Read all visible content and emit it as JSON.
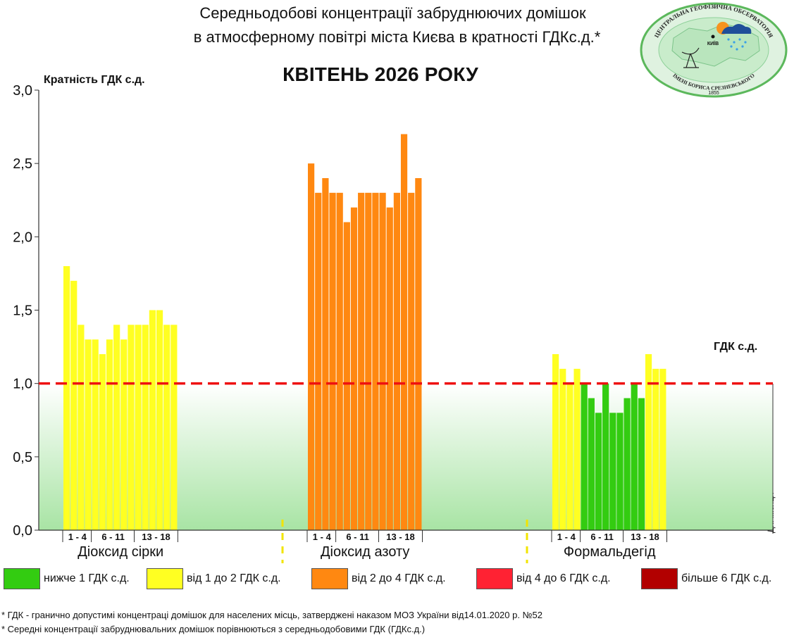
{
  "title_line1": "Середньодобові концентрації забруднюючих домішок",
  "title_line2": "в атмосферному повітрі міста Києва в кратності ГДКс.д.*",
  "month_title": "КВІТЕНЬ 2026 РОКУ",
  "y_axis_label": "Кратність ГДК с.д.",
  "gdk_line_label": "ГДК с.д.",
  "days_axis_label": "Дні місяця",
  "logo": {
    "ring_text_top": "ЦЕНТРАЛЬНА ГЕОФІЗИЧНА ОБСЕРВАТОРІЯ",
    "ring_text_bottom": "ІМЕНІ БОРИСА СРЕЗНЕВСЬКОГО",
    "city": "КИЇВ",
    "year": "1855"
  },
  "colors": {
    "green": "#33cc11",
    "yellow": "#ffff22",
    "orange": "#ff8811",
    "red": "#ff2233",
    "darkred": "#b20000",
    "threshold": "#ee1111"
  },
  "chart_data": {
    "type": "bar",
    "ylim": [
      0,
      3.0
    ],
    "yticks": [
      "0,0",
      "0,5",
      "1,0",
      "1,5",
      "2,0",
      "2,5",
      "3,0"
    ],
    "threshold": 1.0,
    "threshold_label": "ГДК с.д.",
    "groups": [
      {
        "name": "Діоксид сірки",
        "days": [
          1,
          2,
          3,
          4,
          6,
          7,
          8,
          9,
          10,
          11,
          13,
          14,
          15,
          16,
          17,
          18
        ],
        "values": [
          1.8,
          1.7,
          1.4,
          1.3,
          1.3,
          1.2,
          1.3,
          1.4,
          1.3,
          1.4,
          1.4,
          1.4,
          1.5,
          1.5,
          1.4,
          1.4
        ],
        "colors": [
          "yellow",
          "yellow",
          "yellow",
          "yellow",
          "yellow",
          "yellow",
          "yellow",
          "yellow",
          "yellow",
          "yellow",
          "yellow",
          "yellow",
          "yellow",
          "yellow",
          "yellow",
          "yellow"
        ],
        "day_ranges": [
          "1 - 4",
          "6 - 11",
          "13 - 18"
        ]
      },
      {
        "name": "Діоксид азоту",
        "days": [
          1,
          2,
          3,
          4,
          6,
          7,
          8,
          9,
          10,
          11,
          13,
          14,
          15,
          16,
          17,
          18
        ],
        "values": [
          2.5,
          2.3,
          2.4,
          2.3,
          2.3,
          2.1,
          2.2,
          2.3,
          2.3,
          2.3,
          2.3,
          2.2,
          2.3,
          2.7,
          2.3,
          2.4
        ],
        "colors": [
          "orange",
          "orange",
          "orange",
          "orange",
          "orange",
          "orange",
          "orange",
          "orange",
          "orange",
          "orange",
          "orange",
          "orange",
          "orange",
          "orange",
          "orange",
          "orange"
        ],
        "day_ranges": [
          "1 - 4",
          "6 - 11",
          "13 - 18"
        ]
      },
      {
        "name": "Формальдегід",
        "days": [
          1,
          2,
          3,
          4,
          6,
          7,
          8,
          9,
          10,
          11,
          13,
          14,
          15,
          16,
          17,
          18
        ],
        "values": [
          1.2,
          1.1,
          1.0,
          1.1,
          1.0,
          0.9,
          0.8,
          1.0,
          0.8,
          0.8,
          0.9,
          1.0,
          0.9,
          1.2,
          1.1,
          1.1
        ],
        "colors": [
          "yellow",
          "yellow",
          "yellow",
          "yellow",
          "green",
          "green",
          "green",
          "green",
          "green",
          "green",
          "green",
          "green",
          "green",
          "yellow",
          "yellow",
          "yellow"
        ],
        "day_ranges": [
          "1 - 4",
          "6 - 11",
          "13 - 18"
        ]
      }
    ]
  },
  "legend": [
    {
      "label": "нижче 1 ГДК с.д.",
      "color": "green"
    },
    {
      "label": "від 1 до 2 ГДК с.д.",
      "color": "yellow"
    },
    {
      "label": "від 2 до 4 ГДК с.д.",
      "color": "orange"
    },
    {
      "label": "від 4 до 6 ГДК с.д.",
      "color": "red"
    },
    {
      "label": "більше 6 ГДК с.д.",
      "color": "darkred"
    }
  ],
  "footnotes": [
    "* ГДК - гранично допустимі концентраці домішок для населених місць, затверджені наказом МОЗ України від14.01.2020 р. №52",
    "* Середні концентрації забруднювальних домішок порівнюються з середньодобовими  ГДК (ГДКс.д.)"
  ]
}
